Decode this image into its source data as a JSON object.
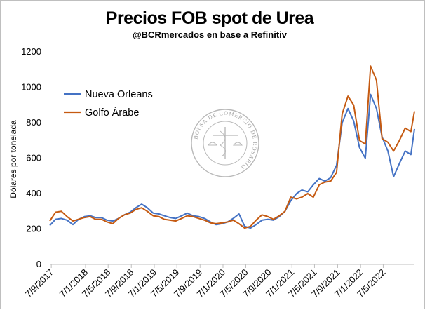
{
  "chart_data": {
    "type": "line",
    "title": "Precios FOB spot de Urea",
    "subtitle": "@BCRmercados en base a Refinitiv",
    "ylabel": "Dólares por tonelada",
    "ylim": [
      0,
      1200
    ],
    "yticks": [
      "0",
      "200",
      "400",
      "600",
      "800",
      "1000",
      "1200"
    ],
    "xlim": [
      "2017-07-01",
      "2022-10-20"
    ],
    "xticks": [
      {
        "label": "7/9/2017",
        "date": "2017-07-09"
      },
      {
        "label": "7/1/2018",
        "date": "2018-01-07"
      },
      {
        "label": "7/5/2018",
        "date": "2018-05-07"
      },
      {
        "label": "7/9/2018",
        "date": "2018-09-07"
      },
      {
        "label": "7/1/2019",
        "date": "2019-01-07"
      },
      {
        "label": "7/5/2019",
        "date": "2019-05-07"
      },
      {
        "label": "7/9/2019",
        "date": "2019-09-07"
      },
      {
        "label": "7/1/2020",
        "date": "2020-01-07"
      },
      {
        "label": "7/5/2020",
        "date": "2020-05-07"
      },
      {
        "label": "7/9/2020",
        "date": "2020-09-07"
      },
      {
        "label": "7/1/2021",
        "date": "2021-01-07"
      },
      {
        "label": "7/5/2021",
        "date": "2021-05-07"
      },
      {
        "label": "7/9/2021",
        "date": "2021-09-07"
      },
      {
        "label": "7/1/2022",
        "date": "2022-01-07"
      },
      {
        "label": "7/5/2022",
        "date": "2022-05-07"
      }
    ],
    "grid": false,
    "legend_position": "top-left",
    "series": [
      {
        "name": "Nueva Orleans",
        "color": "#4472C4",
        "points": [
          [
            "2017-07-01",
            220
          ],
          [
            "2017-08-01",
            255
          ],
          [
            "2017-09-01",
            260
          ],
          [
            "2017-10-01",
            250
          ],
          [
            "2017-11-01",
            225
          ],
          [
            "2017-12-01",
            255
          ],
          [
            "2018-01-01",
            270
          ],
          [
            "2018-02-01",
            275
          ],
          [
            "2018-03-01",
            265
          ],
          [
            "2018-04-01",
            265
          ],
          [
            "2018-05-01",
            250
          ],
          [
            "2018-06-01",
            245
          ],
          [
            "2018-07-01",
            260
          ],
          [
            "2018-08-01",
            280
          ],
          [
            "2018-09-01",
            295
          ],
          [
            "2018-10-01",
            320
          ],
          [
            "2018-11-01",
            340
          ],
          [
            "2018-12-01",
            320
          ],
          [
            "2019-01-01",
            290
          ],
          [
            "2019-02-01",
            285
          ],
          [
            "2019-03-01",
            275
          ],
          [
            "2019-04-01",
            265
          ],
          [
            "2019-05-01",
            260
          ],
          [
            "2019-06-01",
            275
          ],
          [
            "2019-07-01",
            290
          ],
          [
            "2019-08-01",
            275
          ],
          [
            "2019-09-01",
            270
          ],
          [
            "2019-10-01",
            260
          ],
          [
            "2019-11-01",
            240
          ],
          [
            "2019-12-01",
            225
          ],
          [
            "2020-01-01",
            230
          ],
          [
            "2020-02-01",
            240
          ],
          [
            "2020-03-01",
            260
          ],
          [
            "2020-04-01",
            285
          ],
          [
            "2020-05-01",
            215
          ],
          [
            "2020-06-01",
            205
          ],
          [
            "2020-07-01",
            225
          ],
          [
            "2020-08-01",
            250
          ],
          [
            "2020-09-01",
            255
          ],
          [
            "2020-10-01",
            250
          ],
          [
            "2020-11-01",
            270
          ],
          [
            "2020-12-01",
            300
          ],
          [
            "2021-01-01",
            360
          ],
          [
            "2021-02-01",
            400
          ],
          [
            "2021-03-01",
            420
          ],
          [
            "2021-04-01",
            410
          ],
          [
            "2021-05-01",
            450
          ],
          [
            "2021-06-01",
            485
          ],
          [
            "2021-07-01",
            470
          ],
          [
            "2021-08-01",
            490
          ],
          [
            "2021-09-01",
            560
          ],
          [
            "2021-10-01",
            800
          ],
          [
            "2021-11-01",
            880
          ],
          [
            "2021-12-01",
            810
          ],
          [
            "2022-01-01",
            660
          ],
          [
            "2022-02-01",
            600
          ],
          [
            "2022-03-01",
            960
          ],
          [
            "2022-04-01",
            880
          ],
          [
            "2022-05-01",
            720
          ],
          [
            "2022-06-01",
            640
          ],
          [
            "2022-07-01",
            495
          ],
          [
            "2022-08-01",
            570
          ],
          [
            "2022-09-01",
            640
          ],
          [
            "2022-10-01",
            620
          ],
          [
            "2022-10-20",
            765
          ]
        ]
      },
      {
        "name": "Golfo Árabe",
        "color": "#C55A11",
        "points": [
          [
            "2017-07-01",
            245
          ],
          [
            "2017-08-01",
            295
          ],
          [
            "2017-09-01",
            300
          ],
          [
            "2017-10-01",
            270
          ],
          [
            "2017-11-01",
            245
          ],
          [
            "2017-12-01",
            255
          ],
          [
            "2018-01-01",
            265
          ],
          [
            "2018-02-01",
            270
          ],
          [
            "2018-03-01",
            255
          ],
          [
            "2018-04-01",
            255
          ],
          [
            "2018-05-01",
            240
          ],
          [
            "2018-06-01",
            230
          ],
          [
            "2018-07-01",
            260
          ],
          [
            "2018-08-01",
            280
          ],
          [
            "2018-09-01",
            290
          ],
          [
            "2018-10-01",
            310
          ],
          [
            "2018-11-01",
            320
          ],
          [
            "2018-12-01",
            300
          ],
          [
            "2019-01-01",
            275
          ],
          [
            "2019-02-01",
            270
          ],
          [
            "2019-03-01",
            255
          ],
          [
            "2019-04-01",
            250
          ],
          [
            "2019-05-01",
            245
          ],
          [
            "2019-06-01",
            260
          ],
          [
            "2019-07-01",
            275
          ],
          [
            "2019-08-01",
            270
          ],
          [
            "2019-09-01",
            260
          ],
          [
            "2019-10-01",
            250
          ],
          [
            "2019-11-01",
            235
          ],
          [
            "2019-12-01",
            230
          ],
          [
            "2020-01-01",
            235
          ],
          [
            "2020-02-01",
            240
          ],
          [
            "2020-03-01",
            250
          ],
          [
            "2020-04-01",
            230
          ],
          [
            "2020-05-01",
            205
          ],
          [
            "2020-06-01",
            215
          ],
          [
            "2020-07-01",
            250
          ],
          [
            "2020-08-01",
            280
          ],
          [
            "2020-09-01",
            270
          ],
          [
            "2020-10-01",
            255
          ],
          [
            "2020-11-01",
            275
          ],
          [
            "2020-12-01",
            300
          ],
          [
            "2021-01-01",
            380
          ],
          [
            "2021-02-01",
            370
          ],
          [
            "2021-03-01",
            380
          ],
          [
            "2021-04-01",
            400
          ],
          [
            "2021-05-01",
            380
          ],
          [
            "2021-06-01",
            450
          ],
          [
            "2021-07-01",
            465
          ],
          [
            "2021-08-01",
            470
          ],
          [
            "2021-09-01",
            520
          ],
          [
            "2021-10-01",
            850
          ],
          [
            "2021-11-01",
            950
          ],
          [
            "2021-12-01",
            900
          ],
          [
            "2022-01-01",
            700
          ],
          [
            "2022-02-01",
            680
          ],
          [
            "2022-03-01",
            1120
          ],
          [
            "2022-04-01",
            1040
          ],
          [
            "2022-05-01",
            710
          ],
          [
            "2022-06-01",
            690
          ],
          [
            "2022-07-01",
            640
          ],
          [
            "2022-08-01",
            700
          ],
          [
            "2022-09-01",
            770
          ],
          [
            "2022-10-01",
            750
          ],
          [
            "2022-10-20",
            865
          ]
        ]
      }
    ],
    "watermark": {
      "text": "BOLSA DE COMERCIO DE ROSARIO",
      "icon": "bcr-seal-icon"
    }
  }
}
